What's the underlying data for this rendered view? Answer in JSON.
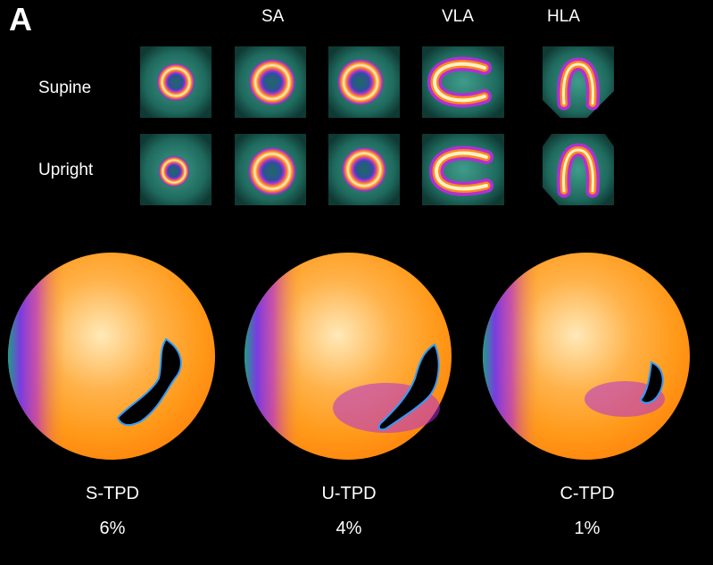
{
  "figure": {
    "panel_letter": "A",
    "column_labels": [
      "SA",
      "VLA",
      "HLA"
    ],
    "row_labels": [
      "Supine",
      "Upright"
    ],
    "metrics": [
      {
        "label": "S-TPD",
        "value": "6%"
      },
      {
        "label": "U-TPD",
        "value": "4%"
      },
      {
        "label": "C-TPD",
        "value": "1%"
      }
    ]
  },
  "colors": {
    "background": "#000000",
    "tile_background": "#1f6a5e",
    "tracer_hot": "#fff3c4",
    "tracer_mid": "#ff9a1a",
    "tracer_low": "#b22fd6",
    "polar_base": "#ffa43a",
    "defect": "#000000"
  }
}
